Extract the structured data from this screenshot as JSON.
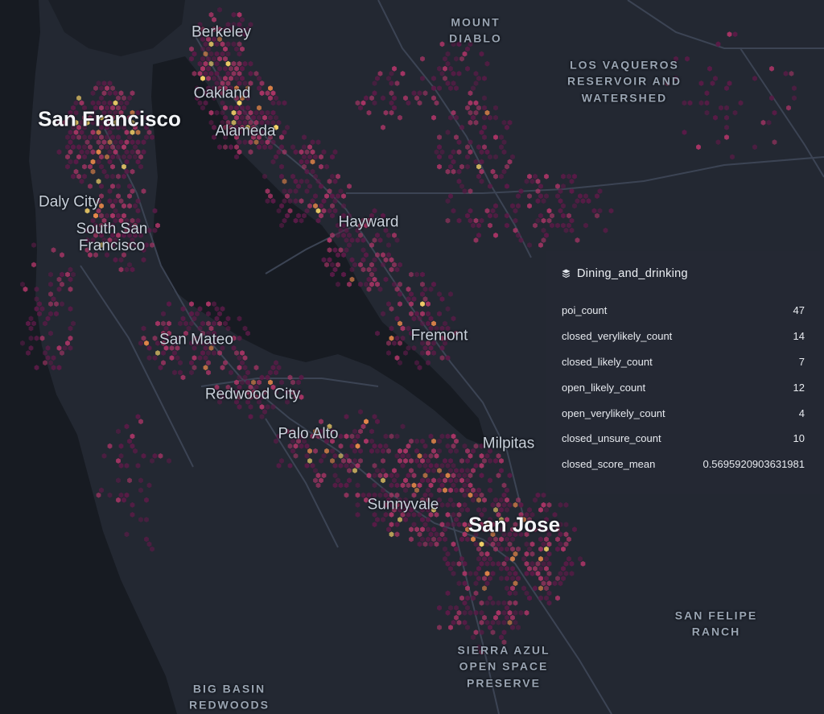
{
  "map": {
    "colors": {
      "land": "#232832",
      "water": "#171b22",
      "road": "#3c4454",
      "hex_low": "#5a1b47",
      "hex_mid": "#a83565",
      "hex_high": "#e8884a",
      "hex_peak": "#fbd66a"
    },
    "place_labels": [
      {
        "id": "berkeley",
        "text": "Berkeley",
        "kind": "city-mid"
      },
      {
        "id": "oakland",
        "text": "Oakland",
        "kind": "city-mid"
      },
      {
        "id": "alameda",
        "text": "Alameda",
        "kind": "city-mid"
      },
      {
        "id": "san-francisco",
        "text": "San Francisco",
        "kind": "city-major"
      },
      {
        "id": "daly-city",
        "text": "Daly City",
        "kind": "city-mid"
      },
      {
        "id": "south-san-francisco",
        "text": "South San\nFrancisco",
        "kind": "city-wrap"
      },
      {
        "id": "hayward",
        "text": "Hayward",
        "kind": "city-mid"
      },
      {
        "id": "san-mateo",
        "text": "San Mateo",
        "kind": "city-mid"
      },
      {
        "id": "fremont",
        "text": "Fremont",
        "kind": "city-mid"
      },
      {
        "id": "redwood-city",
        "text": "Redwood City",
        "kind": "city-mid"
      },
      {
        "id": "palo-alto",
        "text": "Palo Alto",
        "kind": "city-mid"
      },
      {
        "id": "milpitas",
        "text": "Milpitas",
        "kind": "city-mid"
      },
      {
        "id": "sunnyvale",
        "text": "Sunnyvale",
        "kind": "city-mid"
      },
      {
        "id": "san-jose",
        "text": "San Jose",
        "kind": "city-major"
      },
      {
        "id": "mount-diablo",
        "text": "MOUNT\nDIABLO",
        "kind": "park"
      },
      {
        "id": "los-vaqueros",
        "text": "LOS VAQUEROS\nRESERVOIR AND\nWATERSHED",
        "kind": "park"
      },
      {
        "id": "san-felipe-ranch",
        "text": "SAN FELIPE\nRANCH",
        "kind": "park"
      },
      {
        "id": "sierra-azul",
        "text": "SIERRA AZUL\nOPEN SPACE\nPRESERVE",
        "kind": "park"
      },
      {
        "id": "big-basin",
        "text": "BIG BASIN\nREDWOODS",
        "kind": "park"
      }
    ]
  },
  "tooltip": {
    "icon": "layers-icon",
    "title": "Dining_and_drinking",
    "rows": [
      {
        "key": "poi_count",
        "value": "47"
      },
      {
        "key": "closed_verylikely_count",
        "value": "14"
      },
      {
        "key": "closed_likely_count",
        "value": "7"
      },
      {
        "key": "open_likely_count",
        "value": "12"
      },
      {
        "key": "open_verylikely_count",
        "value": "4"
      },
      {
        "key": "closed_unsure_count",
        "value": "10"
      },
      {
        "key": "closed_score_mean",
        "value": "0.5695920903631981"
      }
    ]
  }
}
